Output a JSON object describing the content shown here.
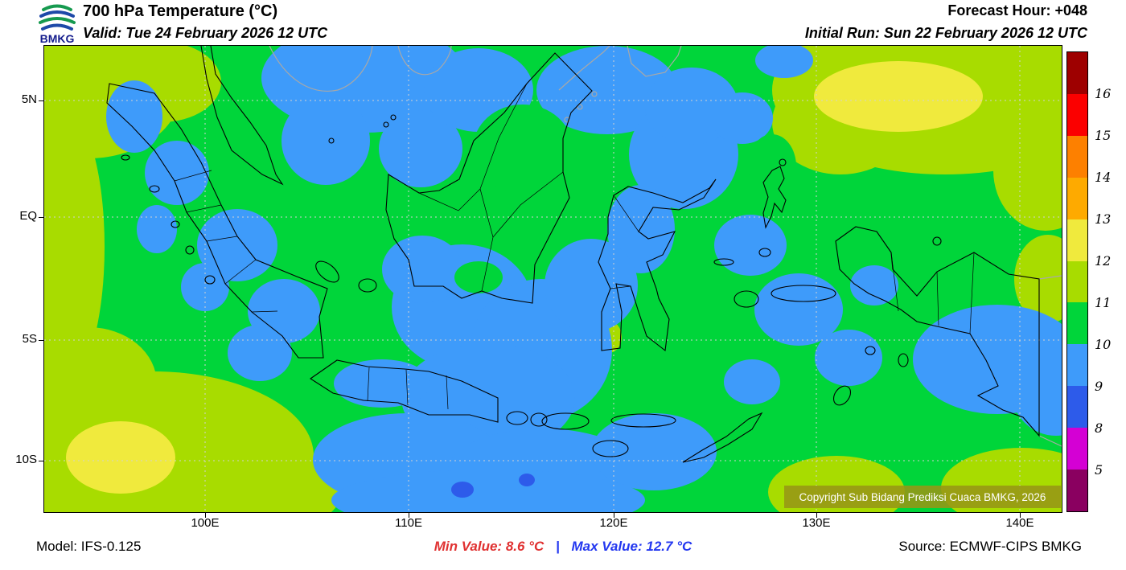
{
  "header": {
    "logo_text": "BMKG",
    "title": "700 hPa Temperature (°C)",
    "valid_line": "Valid: Tue 24 February 2026 12 UTC",
    "forecast_hour": "Forecast Hour: +048",
    "initial_run": "Initial Run: Sun 22 February 2026 12 UTC"
  },
  "map": {
    "lat_labels": [
      "5N",
      "EQ",
      "5S",
      "10S"
    ],
    "lon_labels": [
      "100E",
      "110E",
      "120E",
      "130E",
      "140E"
    ],
    "copyright": "Copyright Sub Bidang Prediksi Cuaca BMKG, 2026"
  },
  "colorbar": {
    "tick_labels": [
      "16",
      "15",
      "14",
      "13",
      "12",
      "11",
      "10",
      "9",
      "8",
      "5"
    ],
    "segment_colors": [
      "#9e0000",
      "#fb0000",
      "#fd8000",
      "#feaa00",
      "#f0ea3d",
      "#a8dc00",
      "#00d53a",
      "#3e9bfa",
      "#2d5bea",
      "#d400d4",
      "#8a0060"
    ]
  },
  "footer": {
    "model": "Model: IFS-0.125",
    "min_value": "Min Value: 8.6 °C",
    "separator": "|",
    "max_value": "Max Value: 12.7 °C",
    "source": "Source: ECMWF-CIPS BMKG"
  }
}
